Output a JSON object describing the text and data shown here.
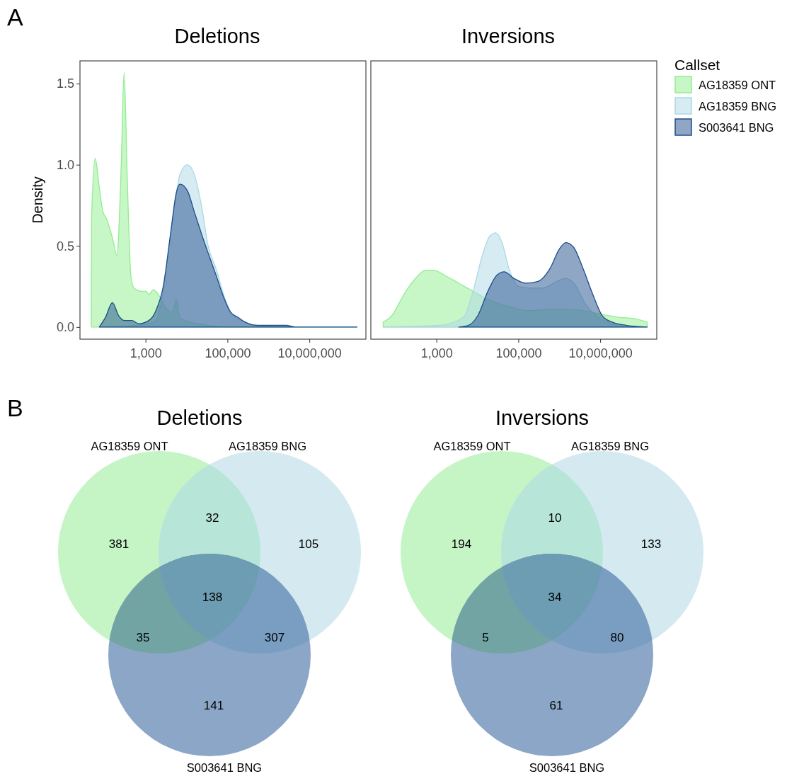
{
  "chart_data": [
    {
      "type": "area",
      "title": "Deletions",
      "ylabel": "Density",
      "annotations": [
        "A"
      ],
      "log": "x",
      "xlim": [
        25,
        240000000
      ],
      "xticks": [
        {
          "value": 1000,
          "label": "1,000"
        },
        {
          "value": 100000,
          "label": "100,000"
        },
        {
          "value": 10000000,
          "label": "10,000,000"
        }
      ],
      "ylim": [
        -0.075,
        1.64
      ],
      "yticks": [
        {
          "value": 0,
          "label": "0.0"
        },
        0.5,
        {
          "value": 1,
          "label": "1.0"
        },
        1.5
      ],
      "grid": false,
      "series": [
        {
          "color": "#90ee90",
          "x": [
            47,
            48,
            59,
            74,
            91,
            110,
            155,
            200,
            250,
            300,
            355,
            440,
            525,
            800,
            1050,
            1200,
            1550,
            2050,
            3100,
            4400,
            4900,
            5750,
            6750,
            12000,
            35000,
            140000,
            145000000
          ],
          "values": [
            0,
            0.67,
            1.04,
            0.86,
            0.71,
            0.67,
            0.55,
            0.44,
            0.94,
            1.57,
            0.94,
            0.31,
            0.24,
            0.22,
            0.22,
            0.2,
            0.23,
            0.2,
            0.12,
            0.09,
            0.12,
            0.17,
            0.06,
            0.03,
            0.01,
            0,
            0
          ]
        },
        {
          "color": "#add8e6",
          "x": [
            79,
            600,
            1200,
            1780,
            2700,
            3800,
            5250,
            6900,
            10500,
            15500,
            23500,
            33000,
            52500,
            91000,
            140000,
            270000,
            525000,
            4100000,
            145000000
          ],
          "values": [
            0,
            0.01,
            0.02,
            0.04,
            0.22,
            0.51,
            0.77,
            0.94,
            1.0,
            0.94,
            0.74,
            0.51,
            0.36,
            0.16,
            0.07,
            0.03,
            0.01,
            0,
            0
          ]
        },
        {
          "color": "#1f4e8c",
          "x": [
            74,
            105,
            155,
            220,
            310,
            460,
            690,
            1200,
            1780,
            2700,
            4050,
            5650,
            6900,
            10500,
            15500,
            23500,
            35500,
            52500,
            79000,
            120000,
            180000,
            270000,
            525000,
            2700000,
            4550000,
            145000000
          ],
          "values": [
            0,
            0.06,
            0.15,
            0.07,
            0.04,
            0.04,
            0.02,
            0.04,
            0.1,
            0.25,
            0.57,
            0.83,
            0.88,
            0.84,
            0.71,
            0.57,
            0.44,
            0.32,
            0.19,
            0.09,
            0.06,
            0.03,
            0.01,
            0.01,
            0,
            0
          ]
        }
      ]
    },
    {
      "type": "area",
      "title": "Inversions",
      "legend": "right",
      "legend_title": "Callset",
      "tick_labels": "x",
      "log": "x",
      "xlim": [
        25,
        240000000
      ],
      "xticks": [
        {
          "value": 1000,
          "label": "1,000"
        },
        {
          "value": 100000,
          "label": "100,000"
        },
        {
          "value": 10000000,
          "label": "10,000,000"
        }
      ],
      "ylim": [
        -0.075,
        1.64
      ],
      "yticks": [
        0,
        0.5,
        1,
        1.5
      ],
      "grid": false,
      "series": [
        {
          "name": "AG18359 ONT",
          "color": "#90ee90",
          "x": [
            50,
            81,
            160,
            310,
            540,
            850,
            1550,
            3500,
            7800,
            18000,
            51000,
            200000,
            590000,
            1500000,
            3800000,
            9800000,
            29000000,
            74000000,
            140000000
          ],
          "values": [
            0.03,
            0.07,
            0.2,
            0.3,
            0.35,
            0.35,
            0.32,
            0.27,
            0.22,
            0.17,
            0.13,
            0.1,
            0.11,
            0.11,
            0.1,
            0.08,
            0.06,
            0.05,
            0.03
          ]
        },
        {
          "name": "AG18359 BNG",
          "color": "#add8e6",
          "x": [
            50,
            1200,
            4600,
            7800,
            13500,
            20000,
            28000,
            40000,
            59000,
            102000,
            200000,
            390000,
            870000,
            1400000,
            2250000,
            4400000,
            8700000,
            14800000,
            56000000,
            140000000
          ],
          "values": [
            0,
            0.01,
            0.06,
            0.22,
            0.45,
            0.56,
            0.58,
            0.52,
            0.36,
            0.25,
            0.24,
            0.24,
            0.28,
            0.3,
            0.27,
            0.14,
            0.06,
            0.03,
            0,
            0
          ]
        },
        {
          "name": "S003641 BNG",
          "color": "#1f4e8c",
          "x": [
            3500,
            6000,
            10200,
            18000,
            30000,
            45000,
            78000,
            151000,
            295000,
            590000,
            1000000,
            1450000,
            2250000,
            3800000,
            6600000,
            11200000,
            19500000,
            44000000,
            140000000
          ],
          "values": [
            0,
            0.01,
            0.07,
            0.22,
            0.32,
            0.34,
            0.3,
            0.27,
            0.28,
            0.36,
            0.48,
            0.52,
            0.49,
            0.36,
            0.2,
            0.07,
            0.03,
            0.01,
            0
          ]
        }
      ]
    },
    {
      "type": "other",
      "title": "Deletions",
      "annotations": [
        "B",
        "AG18359 ONT",
        "AG18359 BNG",
        "S003641 BNG",
        "381",
        "105",
        "141",
        "32",
        "35",
        "307",
        "138"
      ]
    },
    {
      "type": "other",
      "title": "Inversions",
      "annotations": [
        "AG18359 ONT",
        "AG18359 BNG",
        "S003641 BNG",
        "194",
        "133",
        "61",
        "10",
        "5",
        "80",
        "34"
      ]
    }
  ]
}
